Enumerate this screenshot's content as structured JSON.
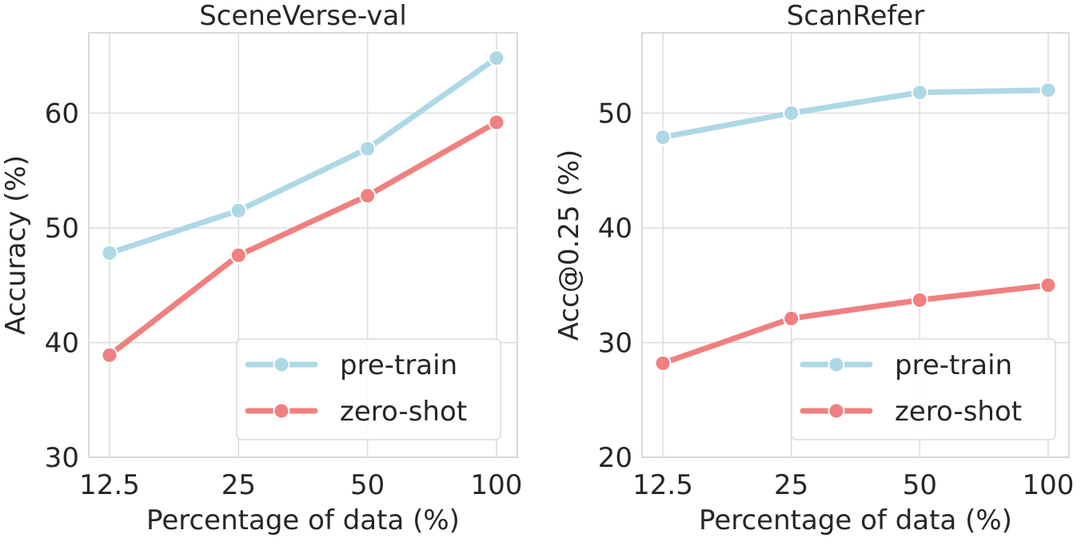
{
  "chart_data": [
    {
      "type": "line",
      "title": "SceneVerse-val",
      "xlabel": "Percentage of data (%)",
      "ylabel": "Accuracy (%)",
      "categories": [
        "12.5",
        "25",
        "50",
        "100"
      ],
      "ylim": [
        30,
        67
      ],
      "yticks": [
        "30",
        "40",
        "50",
        "60"
      ],
      "grid": true,
      "legend_position": "lower-right",
      "series": [
        {
          "name": "pre-train",
          "color": "#add8e6",
          "values": [
            47.8,
            51.5,
            56.9,
            64.8
          ]
        },
        {
          "name": "zero-shot",
          "color": "#f08080",
          "values": [
            38.9,
            47.6,
            52.8,
            59.2
          ]
        }
      ]
    },
    {
      "type": "line",
      "title": "ScanRefer",
      "xlabel": "Percentage of data (%)",
      "ylabel": "Acc@0.25 (%)",
      "categories": [
        "12.5",
        "25",
        "50",
        "100"
      ],
      "ylim": [
        20,
        57
      ],
      "yticks": [
        "20",
        "30",
        "40",
        "50"
      ],
      "grid": true,
      "legend_position": "lower-right",
      "series": [
        {
          "name": "pre-train",
          "color": "#add8e6",
          "values": [
            47.9,
            50.0,
            51.8,
            52.0
          ]
        },
        {
          "name": "zero-shot",
          "color": "#f08080",
          "values": [
            28.2,
            32.1,
            33.7,
            35.0
          ]
        }
      ]
    }
  ]
}
